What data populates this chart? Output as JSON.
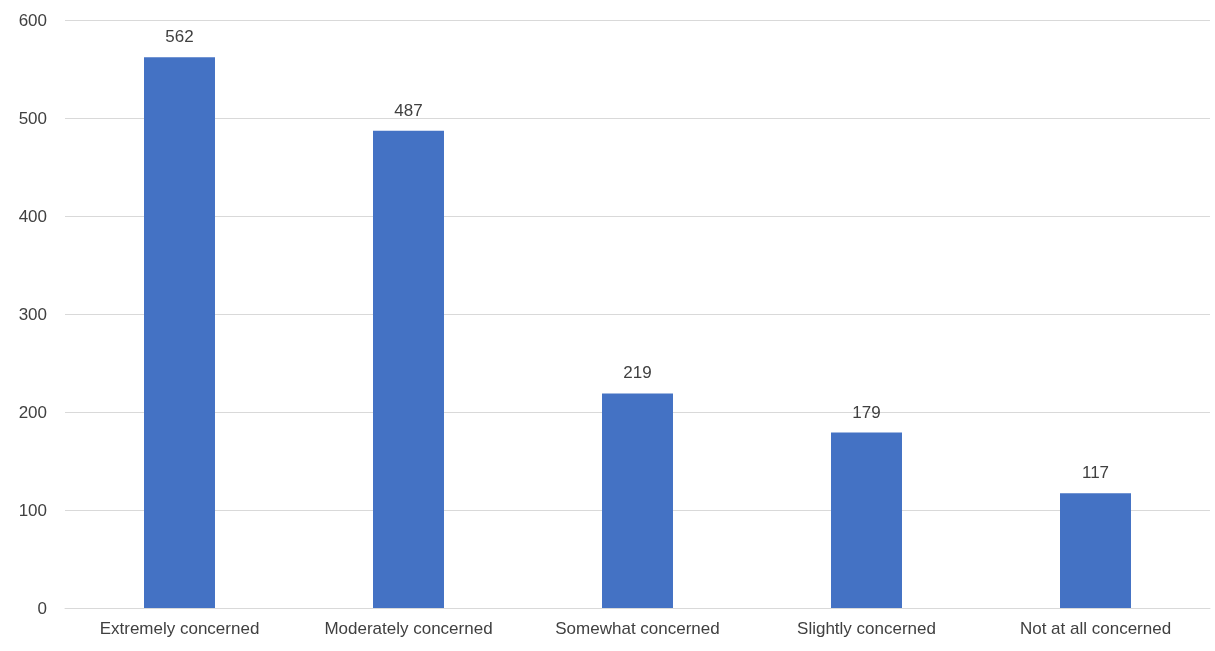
{
  "chart_data": {
    "type": "bar",
    "categories": [
      "Extremely concerned",
      "Moderately concerned",
      "Somewhat concerned",
      "Slightly concerned",
      "Not at all concerned"
    ],
    "values": [
      562,
      487,
      219,
      179,
      117
    ],
    "color": "#4472c4",
    "data_labels": true,
    "ylim": [
      0,
      600
    ],
    "yticks": [
      0,
      100,
      200,
      300,
      400,
      500,
      600
    ],
    "grid": "y"
  }
}
